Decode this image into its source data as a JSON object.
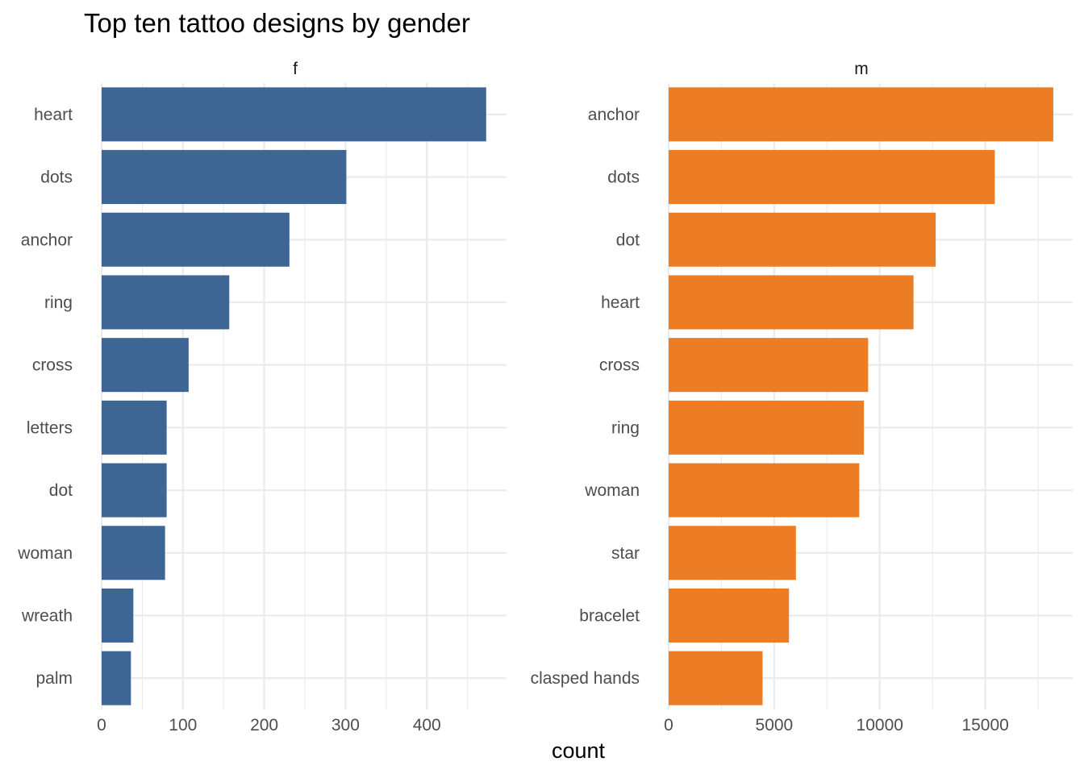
{
  "chart_data": {
    "type": "bar",
    "orientation": "horizontal",
    "title": "Top ten tattoo designs by gender",
    "xlabel": "count",
    "ylabel": "",
    "grid": true,
    "legend": "none",
    "panels": [
      {
        "facet": "f",
        "color": "#3e6695",
        "categories": [
          "heart",
          "dots",
          "anchor",
          "ring",
          "cross",
          "letters",
          "dot",
          "woman",
          "wreath",
          "palm"
        ],
        "values": [
          473,
          301,
          231,
          157,
          107,
          80,
          80,
          78,
          39,
          36
        ],
        "xlim": [
          0,
          498
        ],
        "xticks": [
          0,
          100,
          200,
          300,
          400
        ],
        "xtick_labels": [
          "0",
          "100",
          "200",
          "300",
          "400"
        ]
      },
      {
        "facet": "m",
        "color": "#ec7d25",
        "categories": [
          "anchor",
          "dots",
          "dot",
          "heart",
          "cross",
          "ring",
          "woman",
          "star",
          "bracelet",
          "clasped hands"
        ],
        "values": [
          18220,
          15450,
          12650,
          11600,
          9450,
          9250,
          9030,
          6030,
          5700,
          4450
        ],
        "xlim": [
          0,
          19140
        ],
        "xticks": [
          0,
          5000,
          10000,
          15000
        ],
        "xtick_labels": [
          "0",
          "5000",
          "10000",
          "15000"
        ]
      }
    ]
  }
}
